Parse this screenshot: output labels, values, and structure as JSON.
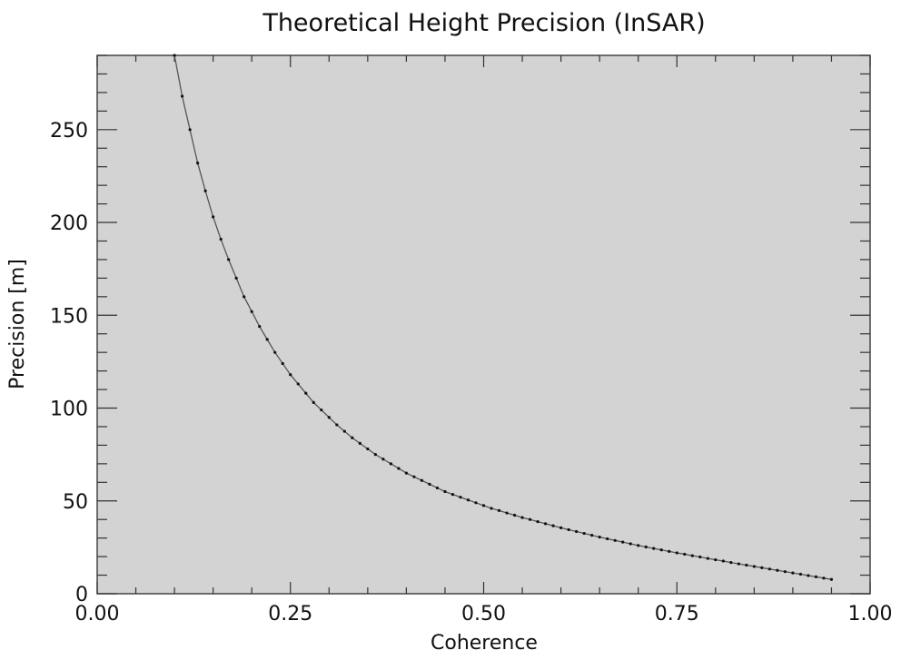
{
  "chart_data": {
    "type": "line",
    "title": "Theoretical Height Precision (InSAR)",
    "xlabel": "Coherence",
    "ylabel": "Precision [m]",
    "xlim": [
      0.0,
      1.0
    ],
    "ylim": [
      0,
      290
    ],
    "x_ticks": [
      "0.00",
      "0.25",
      "0.50",
      "0.75",
      "1.00"
    ],
    "x_tick_values": [
      0.0,
      0.25,
      0.5,
      0.75,
      1.0
    ],
    "y_ticks": [
      "0",
      "50",
      "100",
      "150",
      "200",
      "250"
    ],
    "y_tick_values": [
      0,
      50,
      100,
      150,
      200,
      250
    ],
    "grid": false,
    "legend": "none",
    "colors": {
      "plot_background": "#d3d3d3",
      "line": "#555555",
      "markers": "#111111"
    },
    "series": [
      {
        "x": [
          0.1,
          0.11,
          0.12,
          0.13,
          0.14,
          0.15,
          0.16,
          0.17,
          0.18,
          0.19,
          0.2,
          0.21,
          0.22,
          0.23,
          0.24,
          0.25,
          0.26,
          0.27,
          0.28,
          0.29,
          0.3,
          0.31,
          0.32,
          0.33,
          0.34,
          0.35,
          0.36,
          0.37,
          0.38,
          0.39,
          0.4,
          0.41,
          0.42,
          0.43,
          0.44,
          0.45,
          0.46,
          0.47,
          0.48,
          0.49,
          0.5,
          0.51,
          0.52,
          0.53,
          0.54,
          0.55,
          0.56,
          0.57,
          0.58,
          0.59,
          0.6,
          0.61,
          0.62,
          0.63,
          0.64,
          0.65,
          0.66,
          0.67,
          0.68,
          0.69,
          0.7,
          0.71,
          0.72,
          0.73,
          0.74,
          0.75,
          0.76,
          0.77,
          0.78,
          0.79,
          0.8,
          0.81,
          0.82,
          0.83,
          0.84,
          0.85,
          0.86,
          0.87,
          0.88,
          0.89,
          0.9,
          0.91,
          0.92,
          0.93,
          0.94,
          0.95
        ],
        "y": [
          290,
          268,
          250,
          232,
          217,
          203,
          191,
          180,
          170,
          160,
          152,
          144,
          137,
          130,
          124,
          118,
          113,
          108,
          103,
          99,
          95,
          91,
          87.5,
          84,
          81,
          78,
          75,
          72.5,
          70,
          67.5,
          65,
          63,
          61,
          59,
          57,
          55,
          53.5,
          52,
          50.5,
          49,
          47.5,
          46,
          44.8,
          43.5,
          42.3,
          41,
          40,
          38.8,
          37.7,
          36.6,
          35.5,
          34.5,
          33.5,
          32.5,
          31.5,
          30.5,
          29.6,
          28.7,
          27.8,
          26.9,
          26,
          25.2,
          24.4,
          23.6,
          22.8,
          22,
          21.3,
          20.5,
          19.8,
          19,
          18.3,
          17.6,
          16.8,
          16.1,
          15.4,
          14.7,
          14,
          13.3,
          12.6,
          11.9,
          11.2,
          10.5,
          9.8,
          9.1,
          8.4,
          7.7
        ]
      }
    ]
  }
}
